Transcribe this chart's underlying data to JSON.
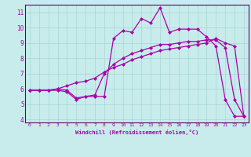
{
  "xlabel": "Windchill (Refroidissement éolien,°C)",
  "bg_color": "#c8ecec",
  "grid_color": "#a8d4d4",
  "line_color": "#aa00aa",
  "spine_color": "#660066",
  "markersize": 2.5,
  "linewidth": 0.9,
  "xlim": [
    -0.5,
    23.5
  ],
  "ylim": [
    3.8,
    11.5
  ],
  "xticks": [
    0,
    1,
    2,
    3,
    4,
    5,
    6,
    7,
    8,
    9,
    10,
    11,
    12,
    13,
    14,
    15,
    16,
    17,
    18,
    19,
    20,
    21,
    22,
    23
  ],
  "yticks": [
    4,
    5,
    6,
    7,
    8,
    9,
    10,
    11
  ],
  "curve1_x": [
    0,
    1,
    2,
    3,
    4,
    5,
    6,
    7,
    8,
    9,
    10,
    11,
    12,
    13,
    14,
    15,
    16,
    17,
    18,
    19,
    20,
    21,
    22,
    23
  ],
  "curve1_y": [
    5.9,
    5.9,
    5.9,
    5.9,
    5.8,
    5.3,
    5.5,
    5.5,
    5.5,
    9.3,
    9.8,
    9.7,
    10.6,
    10.3,
    11.3,
    9.7,
    9.9,
    9.9,
    9.9,
    9.4,
    8.8,
    5.3,
    4.2,
    4.2
  ],
  "curve2_x": [
    0,
    1,
    2,
    3,
    4,
    5,
    6,
    7,
    8,
    9,
    10,
    11,
    12,
    13,
    14,
    15,
    16,
    17,
    18,
    19,
    20,
    21,
    22,
    23
  ],
  "curve2_y": [
    5.9,
    5.9,
    5.9,
    6.0,
    6.2,
    6.4,
    6.5,
    6.7,
    7.1,
    7.4,
    7.6,
    7.9,
    8.1,
    8.3,
    8.5,
    8.6,
    8.7,
    8.8,
    8.9,
    9.0,
    9.3,
    9.0,
    8.8,
    4.2
  ],
  "curve3_x": [
    0,
    1,
    2,
    3,
    4,
    5,
    6,
    7,
    8,
    9,
    10,
    11,
    12,
    13,
    14,
    15,
    16,
    17,
    18,
    19,
    20,
    21,
    22,
    23
  ],
  "curve3_y": [
    5.9,
    5.9,
    5.9,
    6.0,
    5.9,
    5.4,
    5.5,
    5.6,
    7.0,
    7.6,
    8.0,
    8.3,
    8.5,
    8.7,
    8.9,
    8.9,
    9.0,
    9.1,
    9.1,
    9.2,
    9.2,
    8.7,
    5.3,
    4.2
  ]
}
